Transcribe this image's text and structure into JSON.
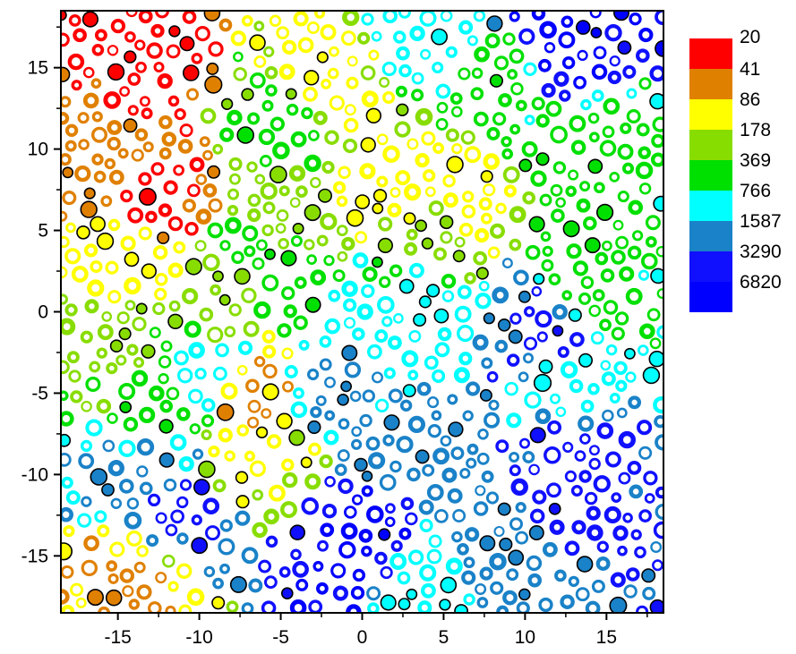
{
  "chart_data": {
    "type": "scatter",
    "title": "",
    "xlabel": "",
    "ylabel": "",
    "xlim": [
      -18.5,
      18.5
    ],
    "ylim": [
      -18.5,
      18.5
    ],
    "x_ticks": [
      -15,
      -10,
      -5,
      0,
      5,
      10,
      15
    ],
    "y_ticks": [
      15,
      10,
      5,
      0,
      -5,
      -10,
      -15
    ],
    "grid": false,
    "marker_style": "ring / filled circle markers colored by value level",
    "color_scale": {
      "placement": "right",
      "levels": [
        {
          "label": "20",
          "color": "#ff0000"
        },
        {
          "label": "41",
          "color": "#e08000"
        },
        {
          "label": "86",
          "color": "#ffff00"
        },
        {
          "label": "178",
          "color": "#88dd00"
        },
        {
          "label": "369",
          "color": "#00e000"
        },
        {
          "label": "766",
          "color": "#00ffff"
        },
        {
          "label": "1587",
          "color": "#1a82c8"
        },
        {
          "label": "3290",
          "color": "#1010ff"
        },
        {
          "label": "6820",
          "color": "#0000ff"
        }
      ]
    },
    "regions": [
      {
        "level": 0,
        "x": -13.0,
        "y": 15.5
      },
      {
        "level": 0,
        "x": -12.5,
        "y": 7.0
      },
      {
        "level": 1,
        "x": -15.0,
        "y": 9.0
      },
      {
        "level": 1,
        "x": -6.5,
        "y": -5.5
      },
      {
        "level": 1,
        "x": -14.0,
        "y": -16.0
      },
      {
        "level": 2,
        "x": -14.0,
        "y": 3.5
      },
      {
        "level": 2,
        "x": -6.0,
        "y": -8.0
      },
      {
        "level": 2,
        "x": -3.0,
        "y": 14.0
      },
      {
        "level": 2,
        "x": 2.0,
        "y": 8.0
      },
      {
        "level": 2,
        "x": 5.0,
        "y": 7.0
      },
      {
        "level": 3,
        "x": -15.0,
        "y": -2.5
      },
      {
        "level": 3,
        "x": -9.0,
        "y": 1.0
      },
      {
        "level": 3,
        "x": 4.0,
        "y": 6.0
      },
      {
        "level": 3,
        "x": -5.0,
        "y": 6.0
      },
      {
        "level": 4,
        "x": -5.0,
        "y": 12.0
      },
      {
        "level": 4,
        "x": 8.0,
        "y": 14.0
      },
      {
        "level": 4,
        "x": -12.5,
        "y": -4.5
      },
      {
        "level": 4,
        "x": -6.0,
        "y": 3.0
      },
      {
        "level": 4,
        "x": 14.0,
        "y": 9.5
      },
      {
        "level": 4,
        "x": 14.0,
        "y": 1.0
      },
      {
        "level": 5,
        "x": 2.5,
        "y": -0.5
      },
      {
        "level": 5,
        "x": 5.0,
        "y": 16.5
      },
      {
        "level": 5,
        "x": 13.0,
        "y": -3.5
      },
      {
        "level": 5,
        "x": 4.0,
        "y": -17.0
      },
      {
        "level": 5,
        "x": -10.0,
        "y": -4.0
      },
      {
        "level": 6,
        "x": 3.5,
        "y": -8.0
      },
      {
        "level": 6,
        "x": -2.0,
        "y": -5.0
      },
      {
        "level": 6,
        "x": 8.0,
        "y": -15.0
      },
      {
        "level": 6,
        "x": -14.0,
        "y": -10.0
      },
      {
        "level": 7,
        "x": 13.0,
        "y": -10.0
      },
      {
        "level": 7,
        "x": -12.0,
        "y": -13.0
      },
      {
        "level": 7,
        "x": 12.0,
        "y": -1.5
      },
      {
        "level": 8,
        "x": 0.0,
        "y": -14.0
      },
      {
        "level": 8,
        "x": 12.0,
        "y": 17.0
      }
    ]
  }
}
